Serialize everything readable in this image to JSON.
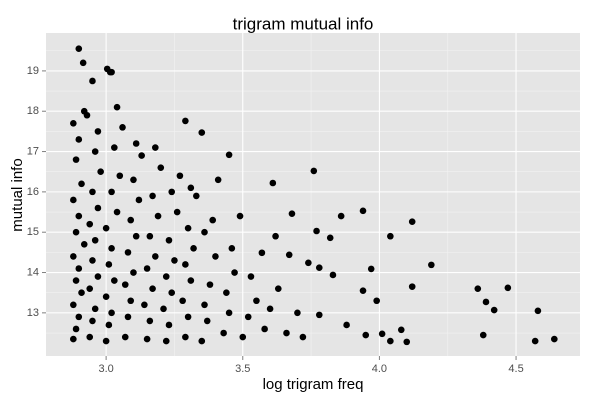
{
  "chart_data": {
    "type": "scatter",
    "title": "trigram mutual info",
    "x_label": "log trigram freq",
    "y_label": "mutual info",
    "color": "#000000",
    "background": "#e5e5e5",
    "grid": true,
    "xlim": [
      2.78,
      4.734
    ],
    "ylim": [
      11.93,
      19.94
    ],
    "xticks": [
      {
        "value": 3.0,
        "label": "3.0"
      },
      {
        "value": 3.5,
        "label": "3.5"
      },
      {
        "value": 4.0,
        "label": "4.0"
      },
      {
        "value": 4.5,
        "label": "4.5"
      }
    ],
    "yticks": [
      13,
      14,
      15,
      16,
      17,
      18,
      19
    ],
    "x_minor_grid": [
      3.25,
      3.75,
      4.25
    ],
    "y_minor_grid": [
      12.5,
      13.5,
      14.5,
      15.5,
      16.5,
      17.5,
      18.5,
      19.5
    ],
    "x": [
      2.9,
      2.916,
      3.004,
      3.015,
      2.95,
      3.02,
      3.29,
      3.35,
      3.45,
      3.61,
      3.76,
      3.86,
      3.94,
      4.04,
      4.12,
      4.19,
      3.97,
      3.94,
      4.12,
      4.36,
      4.39,
      4.42,
      4.47,
      4.58,
      4.64,
      4.57,
      4.38,
      3.99,
      4.08,
      4.1,
      4.04,
      4.01,
      3.95,
      3.88,
      3.78,
      3.74,
      3.78,
      3.83,
      3.67,
      3.57,
      3.68,
      3.62,
      3.49,
      3.39,
      3.82,
      3.77,
      2.88,
      2.89,
      2.9,
      2.88,
      2.91,
      2.89,
      2.9,
      2.88,
      2.92,
      2.89,
      2.9,
      2.88,
      2.91,
      2.89,
      2.9,
      2.88,
      2.92,
      2.94,
      2.95,
      2.96,
      2.94,
      2.97,
      2.95,
      2.96,
      2.94,
      2.97,
      2.95,
      2.98,
      2.96,
      2.97,
      2.93,
      3.0,
      3.01,
      3.02,
      3.0,
      3.03,
      3.01,
      3.02,
      3.0,
      3.04,
      3.02,
      3.05,
      3.03,
      3.06,
      3.04,
      3.07,
      3.08,
      3.09,
      3.07,
      3.1,
      3.08,
      3.11,
      3.09,
      3.12,
      3.1,
      3.13,
      3.11,
      3.15,
      3.16,
      3.14,
      3.17,
      3.15,
      3.18,
      3.16,
      3.19,
      3.17,
      3.2,
      3.18,
      3.22,
      3.23,
      3.21,
      3.24,
      3.22,
      3.25,
      3.23,
      3.26,
      3.24,
      3.27,
      3.29,
      3.3,
      3.28,
      3.31,
      3.29,
      3.32,
      3.3,
      3.33,
      3.31,
      3.35,
      3.37,
      3.36,
      3.38,
      3.4,
      3.36,
      3.41,
      3.43,
      3.45,
      3.44,
      3.47,
      3.46,
      3.5,
      3.52,
      3.55,
      3.53,
      3.58,
      3.6,
      3.63,
      3.66,
      3.7,
      3.72
    ],
    "y": [
      19.55,
      19.2,
      19.05,
      18.97,
      18.75,
      18.97,
      17.76,
      17.47,
      16.92,
      16.22,
      16.52,
      15.4,
      15.53,
      14.9,
      15.26,
      14.19,
      14.09,
      13.55,
      13.65,
      13.6,
      13.27,
      13.07,
      13.62,
      13.05,
      12.35,
      12.3,
      12.45,
      13.3,
      12.58,
      12.28,
      12.3,
      12.48,
      12.45,
      12.7,
      12.95,
      14.24,
      14.12,
      13.94,
      14.44,
      14.49,
      15.46,
      14.9,
      15.4,
      15.3,
      14.86,
      15.03,
      12.35,
      12.6,
      12.9,
      13.2,
      13.5,
      13.8,
      14.1,
      14.4,
      14.7,
      15.0,
      15.4,
      15.8,
      16.2,
      16.8,
      17.3,
      17.7,
      18.0,
      12.4,
      12.8,
      13.1,
      13.6,
      13.9,
      14.3,
      14.8,
      15.2,
      15.6,
      16.0,
      16.5,
      17.0,
      17.5,
      17.9,
      12.3,
      12.7,
      13.0,
      13.4,
      13.8,
      14.2,
      14.6,
      15.1,
      15.5,
      16.0,
      16.4,
      17.1,
      17.6,
      18.1,
      12.4,
      12.9,
      13.3,
      13.7,
      14.0,
      14.5,
      14.9,
      15.3,
      15.8,
      16.3,
      16.9,
      17.2,
      12.35,
      12.8,
      13.2,
      13.6,
      14.1,
      14.4,
      14.9,
      15.4,
      15.9,
      16.6,
      17.1,
      12.3,
      12.7,
      13.1,
      13.5,
      13.9,
      14.3,
      14.8,
      15.5,
      16.0,
      16.4,
      12.4,
      12.9,
      13.3,
      13.8,
      14.2,
      14.6,
      15.1,
      15.9,
      16.1,
      12.3,
      12.8,
      13.2,
      13.7,
      14.4,
      15.0,
      16.3,
      12.5,
      13.0,
      13.5,
      14.0,
      14.6,
      12.4,
      12.9,
      13.3,
      13.9,
      12.6,
      13.1,
      13.6,
      12.5,
      13.0,
      12.4
    ]
  }
}
